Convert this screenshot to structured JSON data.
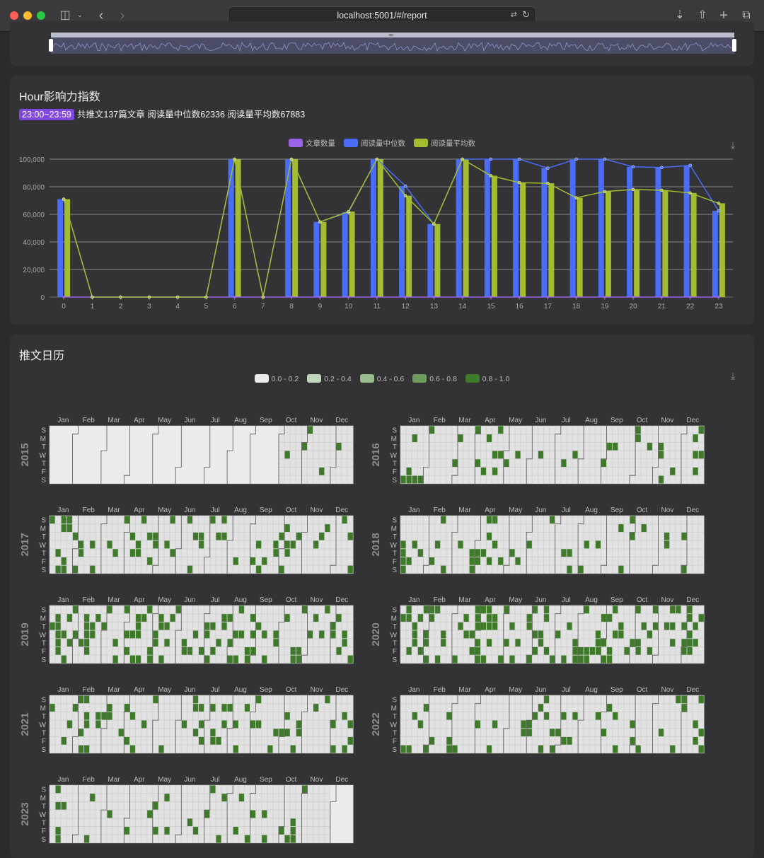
{
  "browser": {
    "url": "localhost:5001/#/report"
  },
  "hour_section": {
    "title": "Hour影响力指数",
    "badge": "23:00~23:59",
    "summary": "共推文137篇文章 阅读量中位数62336 阅读量平均数67883"
  },
  "calendar_section": {
    "title": "推文日历",
    "legend": [
      "0.0 - 0.2",
      "0.2 - 0.4",
      "0.4 - 0.6",
      "0.6 - 0.8",
      "0.8 - 1.0"
    ],
    "legend_colors": [
      "#ececec",
      "#c2d6bc",
      "#98bd8e",
      "#6e9c5f",
      "#3e7a2a"
    ],
    "months": [
      "Jan",
      "Feb",
      "Mar",
      "Apr",
      "May",
      "Jun",
      "Jul",
      "Aug",
      "Sep",
      "Oct",
      "Nov",
      "Dec"
    ],
    "weekdays": [
      "S",
      "M",
      "T",
      "W",
      "T",
      "F",
      "S"
    ],
    "years": [
      "2015",
      "2016",
      "2017",
      "2018",
      "2019",
      "2020",
      "2021",
      "2022",
      "2023"
    ]
  },
  "chart_data": {
    "type": "bar",
    "title": "Hour影响力指数",
    "xlabel": "",
    "ylabel": "",
    "ylim": [
      0,
      100000
    ],
    "yticks": [
      "0",
      "20,000",
      "40,000",
      "60,000",
      "80,000",
      "100,000"
    ],
    "categories": [
      "0",
      "1",
      "2",
      "3",
      "4",
      "5",
      "6",
      "7",
      "8",
      "9",
      "10",
      "11",
      "12",
      "13",
      "14",
      "15",
      "16",
      "17",
      "18",
      "19",
      "20",
      "21",
      "22",
      "23"
    ],
    "series": [
      {
        "name": "文章数量",
        "color": "#9b63e8",
        "values": [
          0,
          0,
          0,
          0,
          0,
          0,
          0,
          0,
          0,
          0,
          0,
          0,
          0,
          0,
          0,
          0,
          0,
          0,
          0,
          0,
          0,
          0,
          0,
          0
        ]
      },
      {
        "name": "阅读量中位数",
        "color": "#4a6cf7",
        "values": [
          71000,
          0,
          0,
          0,
          0,
          0,
          100000,
          0,
          100000,
          54500,
          61500,
          100000,
          80500,
          53000,
          100000,
          100000,
          100000,
          93500,
          100000,
          100000,
          94500,
          94000,
          95500,
          62500
        ]
      },
      {
        "name": "阅读量平均数",
        "color": "#a3bd31",
        "values": [
          71000,
          0,
          0,
          0,
          0,
          0,
          100000,
          0,
          100000,
          54500,
          62000,
          100000,
          73500,
          53000,
          100000,
          88000,
          83000,
          82500,
          72000,
          76500,
          78000,
          77500,
          75500,
          68000
        ]
      }
    ],
    "legend_position": "top-center"
  }
}
